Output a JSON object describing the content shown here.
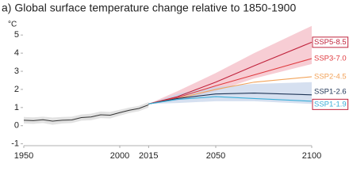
{
  "chart_data": {
    "type": "line",
    "title": "a) Global surface temperature change relative to 1850-1900",
    "y_label": "°C",
    "xlim": [
      1950,
      2100
    ],
    "xticks": [
      1950,
      2000,
      2015,
      2050,
      2100
    ],
    "ylim": [
      -1.1,
      5.4
    ],
    "yticks": [
      -1,
      0,
      1,
      2,
      3,
      4,
      5
    ],
    "historical": {
      "color": "#333333",
      "band_color": "#d6d6d6",
      "x": [
        1950,
        1955,
        1960,
        1965,
        1970,
        1975,
        1980,
        1985,
        1990,
        1995,
        2000,
        2005,
        2010,
        2015
      ],
      "values": [
        0.3,
        0.28,
        0.33,
        0.25,
        0.3,
        0.32,
        0.45,
        0.48,
        0.6,
        0.58,
        0.72,
        0.85,
        0.95,
        1.15
      ],
      "lower": [
        0.12,
        0.1,
        0.15,
        0.05,
        0.12,
        0.15,
        0.28,
        0.3,
        0.42,
        0.4,
        0.56,
        0.7,
        0.8,
        1.0
      ],
      "upper": [
        0.48,
        0.46,
        0.5,
        0.45,
        0.48,
        0.5,
        0.62,
        0.66,
        0.78,
        0.76,
        0.88,
        1.0,
        1.1,
        1.3
      ]
    },
    "x": [
      2015,
      2030,
      2050,
      2070,
      2100
    ],
    "series": [
      {
        "name": "SSP5-8.5",
        "color": "#c0233c",
        "band_color": "#f4b8c2",
        "highlight": true,
        "values": [
          1.2,
          1.6,
          2.4,
          3.3,
          4.6
        ],
        "lower": [
          1.2,
          1.4,
          1.9,
          2.6,
          3.4
        ],
        "upper": [
          1.2,
          1.9,
          2.9,
          4.0,
          5.5
        ]
      },
      {
        "name": "SSP3-7.0",
        "color": "#df3a3f",
        "values": [
          1.2,
          1.55,
          2.2,
          2.8,
          3.7
        ]
      },
      {
        "name": "SSP2-4.5",
        "color": "#f2a35a",
        "values": [
          1.2,
          1.5,
          2.0,
          2.4,
          2.7
        ]
      },
      {
        "name": "SSP1-2.6",
        "color": "#1f3556",
        "band_color": "#c5d3ea",
        "values": [
          1.2,
          1.5,
          1.75,
          1.8,
          1.7
        ],
        "lower": [
          1.2,
          1.25,
          1.35,
          1.35,
          1.2
        ],
        "upper": [
          1.2,
          1.75,
          2.15,
          2.3,
          2.4
        ]
      },
      {
        "name": "SSP1-1.9",
        "color": "#3aaed8",
        "highlight": true,
        "values": [
          1.2,
          1.45,
          1.6,
          1.5,
          1.35
        ]
      }
    ]
  }
}
